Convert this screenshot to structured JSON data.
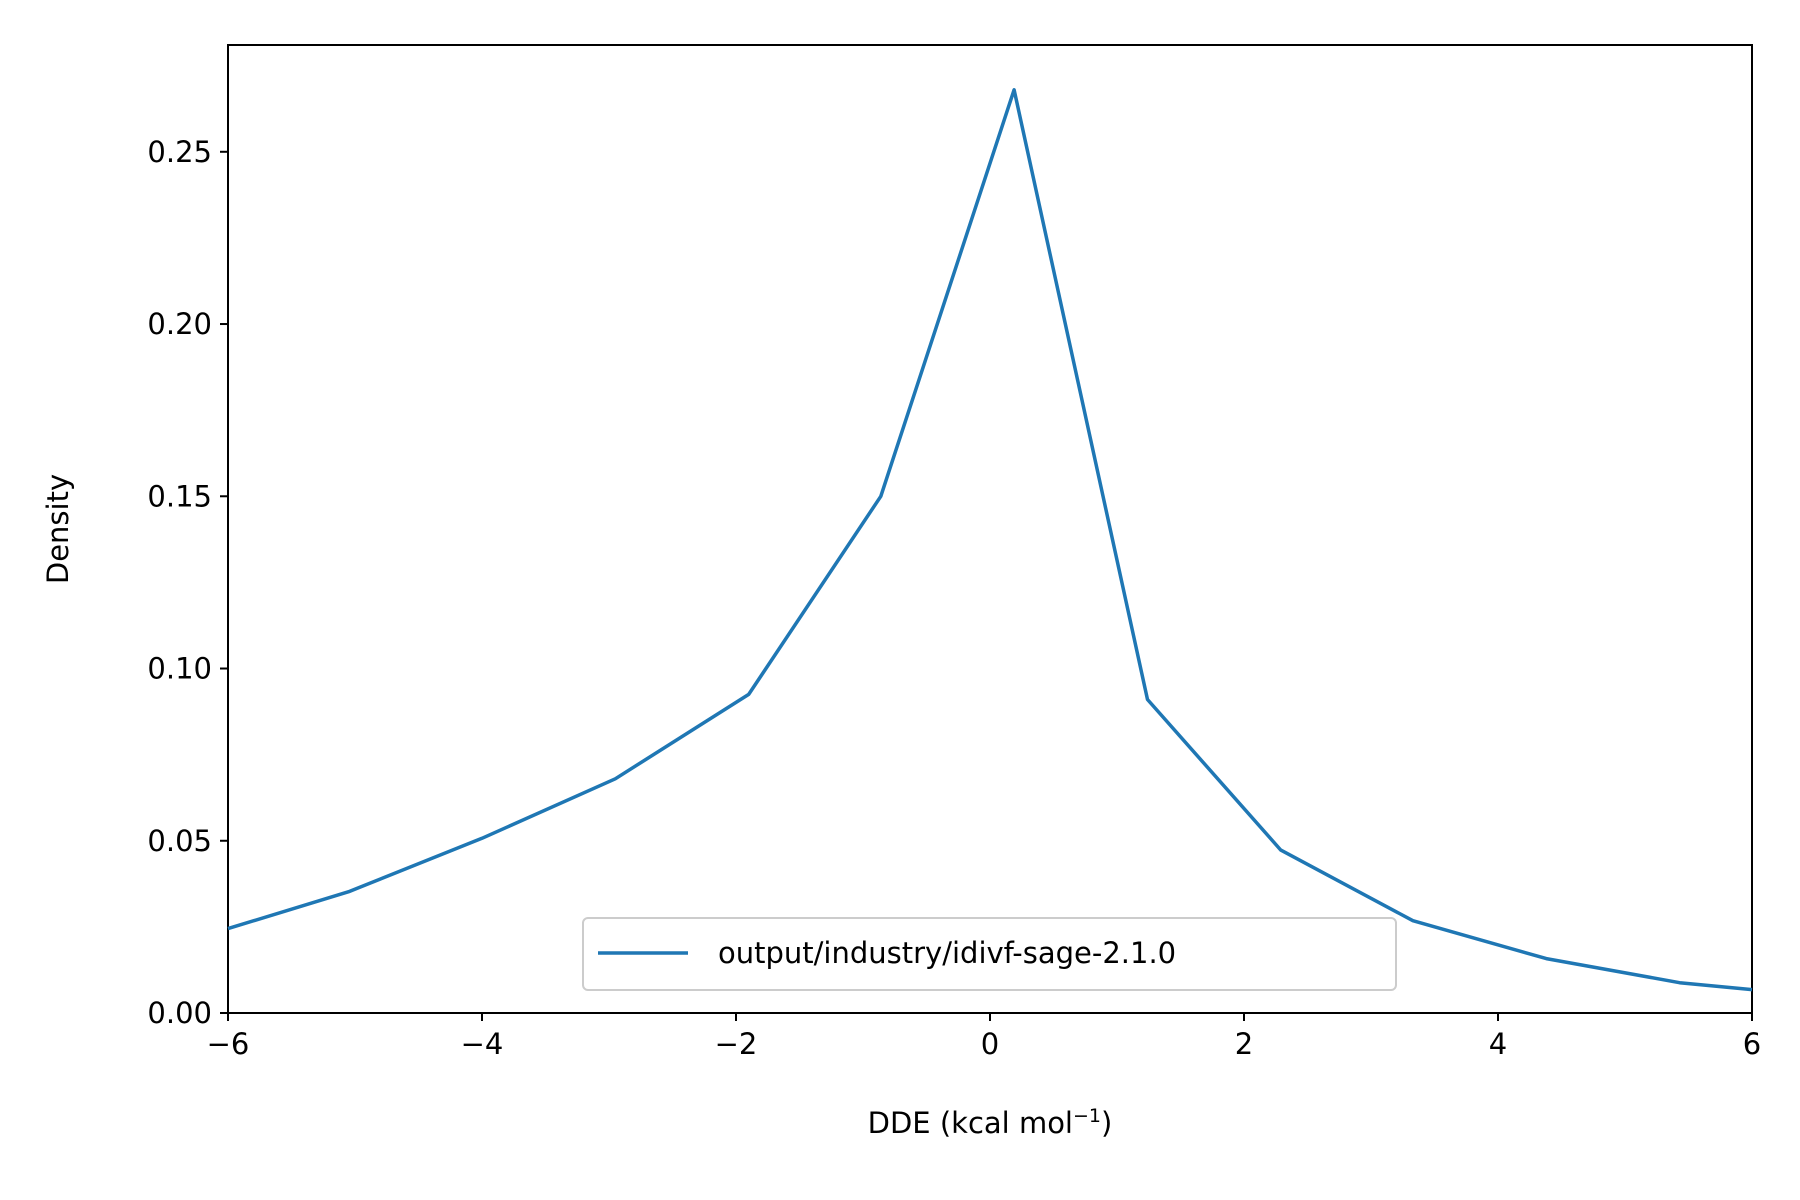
{
  "chart_data": {
    "type": "line",
    "title": "",
    "xlabel": "DDE (kcal mol",
    "xlabel_superscript": "−1",
    "xlabel_suffix": ")",
    "ylabel": "Density",
    "xlim": [
      -6,
      6
    ],
    "ylim": [
      0,
      0.281
    ],
    "x_ticks": [
      {
        "value": -6,
        "label": "−6"
      },
      {
        "value": -4,
        "label": "−4"
      },
      {
        "value": -2,
        "label": "−2"
      },
      {
        "value": 0,
        "label": "0"
      },
      {
        "value": 2,
        "label": "2"
      },
      {
        "value": 4,
        "label": "4"
      },
      {
        "value": 6,
        "label": "6"
      }
    ],
    "y_ticks": [
      {
        "value": 0.0,
        "label": "0.00"
      },
      {
        "value": 0.05,
        "label": "0.05"
      },
      {
        "value": 0.1,
        "label": "0.10"
      },
      {
        "value": 0.15,
        "label": "0.15"
      },
      {
        "value": 0.2,
        "label": "0.20"
      },
      {
        "value": 0.25,
        "label": "0.25"
      }
    ],
    "grid": false,
    "legend_position": "lower-center",
    "series": [
      {
        "name": "output/industry/idivf-sage-2.1.0",
        "color": "#1f77b4",
        "x": [
          -6.0,
          -5.05,
          -4.0,
          -2.95,
          -1.9,
          -0.86,
          0.19,
          1.24,
          2.29,
          3.33,
          4.38,
          5.43,
          6.0
        ],
        "y": [
          0.0245,
          0.0352,
          0.0507,
          0.068,
          0.0925,
          0.15,
          0.268,
          0.091,
          0.0473,
          0.0268,
          0.0158,
          0.0088,
          0.0068
        ]
      }
    ]
  }
}
